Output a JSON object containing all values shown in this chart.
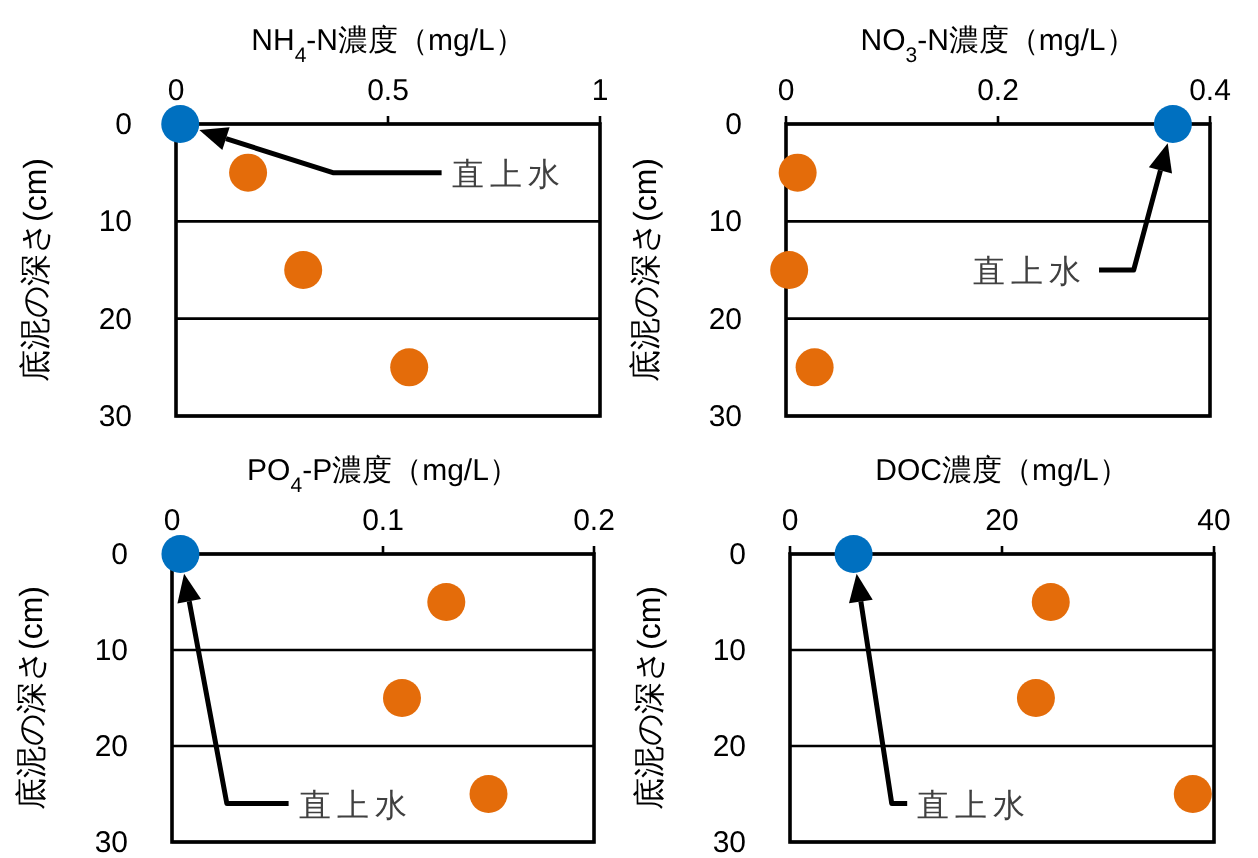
{
  "chart_data": [
    {
      "type": "scatter",
      "title": "NH$_{4}$-N濃度（mg/L）",
      "ylabel": "底泥の深さ(cm)",
      "xlim": [
        0,
        1
      ],
      "xticks": [
        0,
        0.5,
        1
      ],
      "ylim": [
        30,
        0
      ],
      "yticks": [
        0,
        10,
        20,
        30
      ],
      "grid": "y",
      "marker": "circle",
      "series": [
        {
          "color": "#0070c0",
          "x": [
            0.01
          ],
          "values": [
            0
          ]
        },
        {
          "color": "#e46c0a",
          "x": [
            0.17,
            0.3,
            0.55
          ],
          "values": [
            5,
            15,
            25
          ]
        }
      ],
      "annotations": [
        "直上水"
      ]
    },
    {
      "type": "scatter",
      "title": "NO$_{3}$-N濃度（mg/L）",
      "ylabel": "底泥の深さ(cm)",
      "xlim": [
        0,
        0.4
      ],
      "xticks": [
        0,
        0.2,
        0.4
      ],
      "ylim": [
        30,
        0
      ],
      "yticks": [
        0,
        10,
        20,
        30
      ],
      "grid": "y",
      "marker": "circle",
      "series": [
        {
          "color": "#0070c0",
          "x": [
            0.365
          ],
          "values": [
            0
          ]
        },
        {
          "color": "#e46c0a",
          "x": [
            0.011,
            0.003,
            0.027
          ],
          "values": [
            5,
            15,
            25
          ]
        }
      ],
      "annotations": [
        "直上水"
      ]
    },
    {
      "type": "scatter",
      "title": "PO$_{4}$-P濃度（mg/L）",
      "ylabel": "底泥の深さ(cm)",
      "xlim": [
        0,
        0.2
      ],
      "xticks": [
        0,
        0.1,
        0.2
      ],
      "ylim": [
        30,
        0
      ],
      "yticks": [
        0,
        10,
        20,
        30
      ],
      "grid": "y",
      "marker": "circle",
      "series": [
        {
          "color": "#0070c0",
          "x": [
            0.004
          ],
          "values": [
            0
          ]
        },
        {
          "color": "#e46c0a",
          "x": [
            0.13,
            0.109,
            0.15
          ],
          "values": [
            5,
            15,
            25
          ]
        }
      ],
      "annotations": [
        "直上水"
      ]
    },
    {
      "type": "scatter",
      "title": "DOC濃度（mg/L）",
      "ylabel": "底泥の深さ(cm)",
      "xlim": [
        0,
        40
      ],
      "xticks": [
        0,
        20,
        40
      ],
      "ylim": [
        30,
        0
      ],
      "yticks": [
        0,
        10,
        20,
        30
      ],
      "grid": "y",
      "marker": "circle",
      "series": [
        {
          "color": "#0070c0",
          "x": [
            6.0
          ],
          "values": [
            0
          ]
        },
        {
          "color": "#e46c0a",
          "x": [
            24.6,
            23.2,
            38.0
          ],
          "values": [
            5,
            15,
            25
          ]
        }
      ],
      "annotations": [
        "直上水"
      ]
    }
  ]
}
